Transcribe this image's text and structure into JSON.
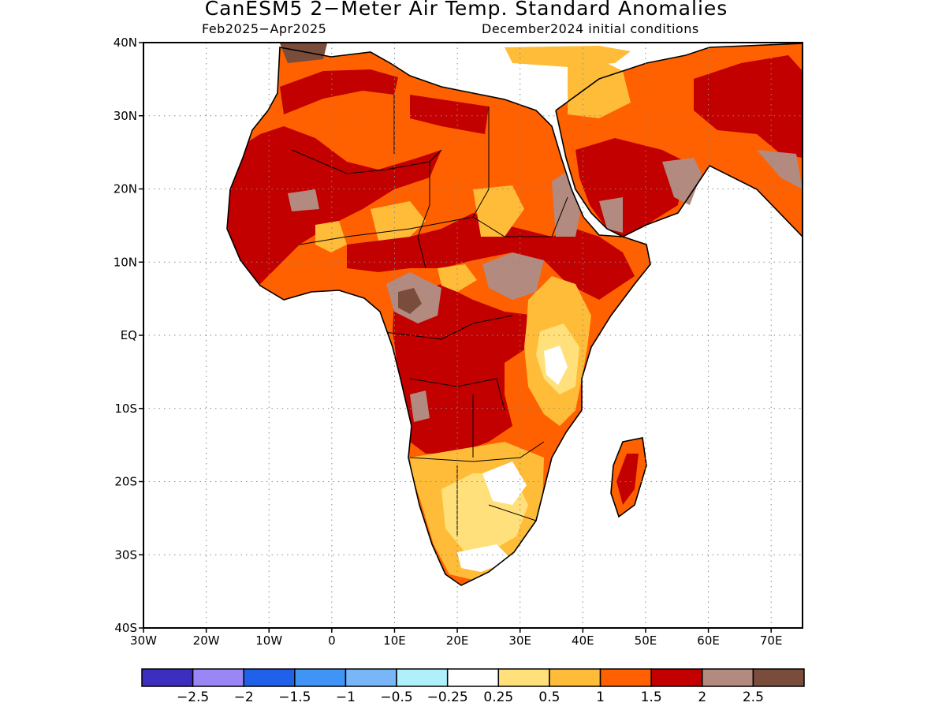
{
  "title": "CanESM5 2−Meter Air Temp. Standard Anomalies",
  "subtitle_left": "Feb2025−Apr2025",
  "subtitle_right": "December2024 initial conditions",
  "map": {
    "lon_range": [
      -30,
      75
    ],
    "lat_range": [
      -40,
      40
    ],
    "lat_labels": [
      {
        "lat": 40,
        "text": "40N"
      },
      {
        "lat": 30,
        "text": "30N"
      },
      {
        "lat": 20,
        "text": "20N"
      },
      {
        "lat": 10,
        "text": "10N"
      },
      {
        "lat": 0,
        "text": "EQ"
      },
      {
        "lat": -10,
        "text": "10S"
      },
      {
        "lat": -20,
        "text": "20S"
      },
      {
        "lat": -30,
        "text": "30S"
      },
      {
        "lat": -40,
        "text": "40S"
      }
    ],
    "lon_labels": [
      {
        "lon": -30,
        "text": "30W"
      },
      {
        "lon": -20,
        "text": "20W"
      },
      {
        "lon": -10,
        "text": "10W"
      },
      {
        "lon": 0,
        "text": "0"
      },
      {
        "lon": 10,
        "text": "10E"
      },
      {
        "lon": 20,
        "text": "20E"
      },
      {
        "lon": 30,
        "text": "30E"
      },
      {
        "lon": 40,
        "text": "40E"
      },
      {
        "lon": 50,
        "text": "50E"
      },
      {
        "lon": 60,
        "text": "60E"
      },
      {
        "lon": 70,
        "text": "70E"
      }
    ],
    "grid_lats": [
      30,
      20,
      10,
      0,
      -10,
      -20,
      -30
    ],
    "grid_lons": [
      -20,
      -10,
      0,
      10,
      20,
      30,
      40,
      50,
      60,
      70
    ]
  },
  "colorbar": {
    "colors": [
      "#3c2fbf",
      "#9a87f5",
      "#2160e8",
      "#3f94f5",
      "#78b6f7",
      "#b0f0fa",
      "#ffffff",
      "#ffe07a",
      "#ffbc38",
      "#ff6000",
      "#c20000",
      "#b38a7f",
      "#7a4c3c"
    ],
    "labels": [
      "−2.5",
      "−2",
      "−1.5",
      "−1",
      "−0.5",
      "−0.25",
      "0.25",
      "0.5",
      "1",
      "1.5",
      "2",
      "2.5"
    ]
  }
}
